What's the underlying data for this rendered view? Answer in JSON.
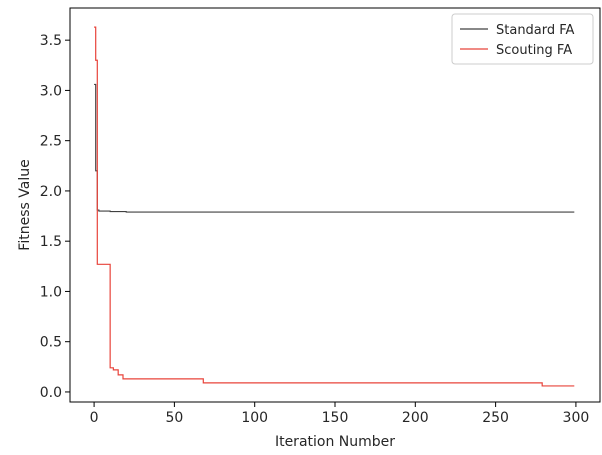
{
  "chart_data": {
    "type": "line",
    "title": "",
    "xlabel": "Iteration Number",
    "ylabel": "Fitness Value",
    "xlim": [
      -15,
      315
    ],
    "ylim": [
      -0.1,
      3.82
    ],
    "x_ticks": [
      0,
      50,
      100,
      150,
      200,
      250,
      300
    ],
    "y_ticks": [
      0.0,
      0.5,
      1.0,
      1.5,
      2.0,
      2.5,
      3.0,
      3.5
    ],
    "x_tick_labels": [
      "0",
      "50",
      "100",
      "150",
      "200",
      "250",
      "300"
    ],
    "y_tick_labels": [
      "0.0",
      "0.5",
      "1.0",
      "1.5",
      "2.0",
      "2.5",
      "3.0",
      "3.5"
    ],
    "grid": false,
    "legend_position": "top-right",
    "series": [
      {
        "name": "Standard FA",
        "color": "#404040",
        "line_style": "steps-post",
        "x": [
          0,
          1,
          2,
          3,
          5,
          10,
          20,
          299
        ],
        "y": [
          3.06,
          2.2,
          1.81,
          1.8,
          1.8,
          1.795,
          1.79,
          1.79
        ]
      },
      {
        "name": "Scouting FA",
        "color": "#e8433a",
        "line_style": "steps-post",
        "x": [
          0,
          1,
          2,
          10,
          12,
          15,
          18,
          67,
          68,
          277,
          279,
          299
        ],
        "y": [
          3.63,
          3.3,
          1.27,
          0.24,
          0.22,
          0.17,
          0.13,
          0.13,
          0.09,
          0.09,
          0.06,
          0.06
        ]
      }
    ]
  }
}
